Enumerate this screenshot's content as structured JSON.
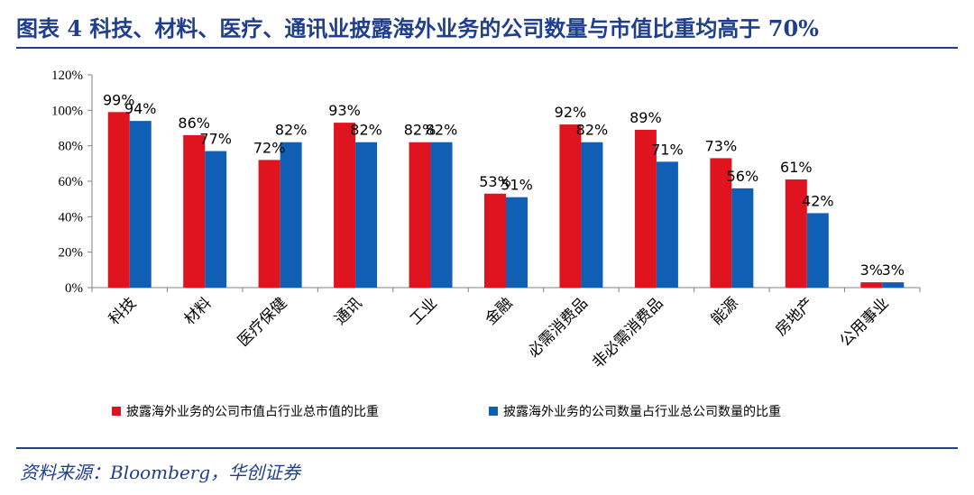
{
  "title": "图表 4   科技、材料、医疗、通讯业披露海外业务的公司数量与市值比重均高于 70%",
  "source": "资料来源：Bloomberg，华创证券",
  "colors": {
    "series1": "#e0141e",
    "series2": "#0f5fb4",
    "title": "#1f3e8c",
    "axis": "#808080"
  },
  "chart_data": {
    "type": "bar",
    "categories": [
      "科技",
      "材料",
      "医疗保健",
      "通讯",
      "工业",
      "金融",
      "必需消费品",
      "非必需消费品",
      "能源",
      "房地产",
      "公用事业"
    ],
    "series": [
      {
        "name": "披露海外业务的公司市值占行业总市值的比重",
        "values": [
          99,
          86,
          72,
          93,
          82,
          53,
          92,
          89,
          73,
          61,
          3
        ],
        "labels": [
          "99%",
          "86%",
          "72%",
          "93%",
          "82%",
          "53%",
          "92%",
          "89%",
          "73%",
          "61%",
          "3%"
        ]
      },
      {
        "name": "披露海外业务的公司数量占行业总公司数量的比重",
        "values": [
          94,
          77,
          82,
          82,
          82,
          51,
          82,
          71,
          56,
          42,
          3
        ],
        "labels": [
          "94%",
          "77%",
          "82%",
          "82%",
          "82%",
          "51%",
          "82%",
          "71%",
          "56%",
          "42%",
          "3%"
        ]
      }
    ],
    "ylim": [
      0,
      120
    ],
    "yticks": [
      "0%",
      "20%",
      "40%",
      "60%",
      "80%",
      "100%",
      "120%"
    ],
    "legend_position": "bottom"
  }
}
